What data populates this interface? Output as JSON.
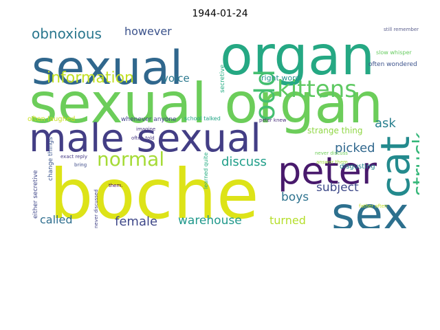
{
  "chart_data": {
    "type": "wordcloud",
    "title": "1944-01-24",
    "words": [
      {
        "text": "boche",
        "color": "#dde318"
      },
      {
        "text": "sexual organ",
        "color": "#6ccd5a"
      },
      {
        "text": "organ",
        "color": "#25a883"
      },
      {
        "text": "sexual",
        "color": "#30678d"
      },
      {
        "text": "male sexual",
        "color": "#433e85"
      },
      {
        "text": "sex",
        "color": "#2d708e"
      },
      {
        "text": "cat",
        "color": "#238a8d"
      },
      {
        "text": "peter",
        "color": "#481a6c"
      },
      {
        "text": "odd",
        "color": "#44bf70"
      },
      {
        "text": "kittens",
        "color": "#5ec962"
      },
      {
        "text": "struck",
        "color": "#35b779"
      },
      {
        "text": "normal",
        "color": "#a5db36"
      },
      {
        "text": "information",
        "color": "#c2df23"
      },
      {
        "text": "obnoxious",
        "color": "#2a778e"
      },
      {
        "text": "however",
        "color": "#3b528b"
      },
      {
        "text": "discuss",
        "color": "#1f9e89"
      },
      {
        "text": "picked",
        "color": "#31688e"
      },
      {
        "text": "ask",
        "color": "#277f8e"
      },
      {
        "text": "boys",
        "color": "#2c728e"
      },
      {
        "text": "subject",
        "color": "#3e4a89"
      },
      {
        "text": "female",
        "color": "#3f4889"
      },
      {
        "text": "warehouse",
        "color": "#1f988b"
      },
      {
        "text": "called",
        "color": "#2e6e8e"
      },
      {
        "text": "turned",
        "color": "#b5de2b"
      },
      {
        "text": "voice",
        "color": "#2a788e"
      },
      {
        "text": "right word",
        "color": "#21918c"
      },
      {
        "text": "strange thing",
        "color": "#8fd744"
      },
      {
        "text": "disgusting",
        "color": "#23888e"
      },
      {
        "text": "secretive",
        "color": "#25ac82"
      },
      {
        "text": "often wondered",
        "color": "#3b528b"
      },
      {
        "text": "slow whisper",
        "color": "#65cb5e"
      },
      {
        "text": "still remember",
        "color": "#5b5f8d"
      },
      {
        "text": "often laughed",
        "color": "#c8e020"
      },
      {
        "text": "whenever anyone",
        "color": "#404387"
      },
      {
        "text": "school talked",
        "color": "#21a585"
      },
      {
        "text": "peter knew",
        "color": "#472c7a"
      },
      {
        "text": "imagine",
        "color": "#46337e"
      },
      {
        "text": "often told",
        "color": "#453781"
      },
      {
        "text": "exact reply",
        "color": "#443983"
      },
      {
        "text": "bring",
        "color": "#3e4c8a"
      },
      {
        "text": "change things",
        "color": "#3a548c"
      },
      {
        "text": "either secretive",
        "color": "#3f4788"
      },
      {
        "text": "never discussed",
        "color": "#414287"
      },
      {
        "text": "learned quite",
        "color": "#26ad81"
      },
      {
        "text": "never discuss",
        "color": "#6ece58"
      },
      {
        "text": "answer them",
        "color": "#9fda3a"
      },
      {
        "text": "father often",
        "color": "#c0df25"
      },
      {
        "text": "them.",
        "color": "#440154"
      }
    ]
  }
}
